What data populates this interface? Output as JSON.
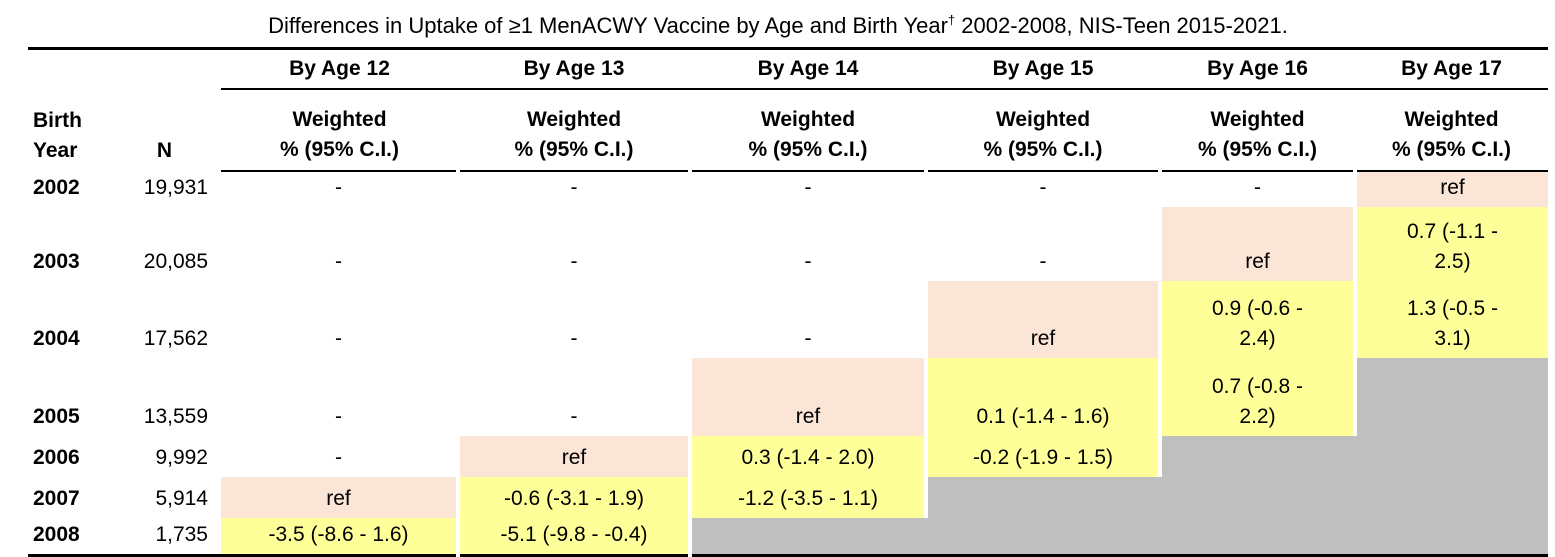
{
  "title": {
    "text": "Differences in Uptake of ≥1 MenACWY Vaccine by Age and Birth Year",
    "dagger": "†",
    "suffix": " 2002-2008, NIS-Teen 2015-2021."
  },
  "table": {
    "birth_year_label": "Birth\nYear",
    "n_label": "N",
    "age_headers": [
      "By Age 12",
      "By Age 13",
      "By Age 14",
      "By Age 15",
      "By Age 16",
      "By Age 17"
    ],
    "measure_subheader": "Weighted\n% (95% C.I.)"
  },
  "colors": {
    "ref_cell": "#FBE5D6",
    "estimate_cell": "#FFFF99",
    "unavailable_cell": "#BFBFBF",
    "rule": "#000000"
  },
  "rows": [
    {
      "year": "2002",
      "n": "19,931",
      "cells": [
        {
          "v": "-",
          "bg": "plain"
        },
        {
          "v": "-",
          "bg": "plain"
        },
        {
          "v": "-",
          "bg": "plain"
        },
        {
          "v": "-",
          "bg": "plain"
        },
        {
          "v": "-",
          "bg": "plain"
        },
        {
          "v": "ref",
          "bg": "ref"
        }
      ]
    },
    {
      "year": "2003",
      "n": "20,085",
      "cells": [
        {
          "v": "-",
          "bg": "plain"
        },
        {
          "v": "-",
          "bg": "plain"
        },
        {
          "v": "-",
          "bg": "plain"
        },
        {
          "v": "-",
          "bg": "plain"
        },
        {
          "v": "ref",
          "bg": "ref"
        },
        {
          "v": "0.7 (-1.1 -\n2.5)",
          "bg": "est"
        }
      ]
    },
    {
      "year": "2004",
      "n": "17,562",
      "cells": [
        {
          "v": "-",
          "bg": "plain"
        },
        {
          "v": "-",
          "bg": "plain"
        },
        {
          "v": "-",
          "bg": "plain"
        },
        {
          "v": "ref",
          "bg": "ref"
        },
        {
          "v": "0.9 (-0.6 -\n2.4)",
          "bg": "est"
        },
        {
          "v": "1.3 (-0.5 -\n3.1)",
          "bg": "est"
        }
      ]
    },
    {
      "year": "2005",
      "n": "13,559",
      "cells": [
        {
          "v": "-",
          "bg": "plain"
        },
        {
          "v": "-",
          "bg": "plain"
        },
        {
          "v": "ref",
          "bg": "ref"
        },
        {
          "v": "0.1 (-1.4 - 1.6)",
          "bg": "est"
        },
        {
          "v": "0.7 (-0.8 -\n2.2)",
          "bg": "est"
        },
        {
          "v": "",
          "bg": "na"
        }
      ]
    },
    {
      "year": "2006",
      "n": "9,992",
      "cells": [
        {
          "v": "-",
          "bg": "plain"
        },
        {
          "v": "ref",
          "bg": "ref"
        },
        {
          "v": "0.3 (-1.4 - 2.0)",
          "bg": "est"
        },
        {
          "v": "-0.2 (-1.9 - 1.5)",
          "bg": "est"
        },
        {
          "v": "",
          "bg": "na"
        },
        {
          "v": "",
          "bg": "na"
        }
      ]
    },
    {
      "year": "2007",
      "n": "5,914",
      "cells": [
        {
          "v": "ref",
          "bg": "ref"
        },
        {
          "v": "-0.6 (-3.1 - 1.9)",
          "bg": "est"
        },
        {
          "v": "-1.2 (-3.5 - 1.1)",
          "bg": "est"
        },
        {
          "v": "",
          "bg": "na"
        },
        {
          "v": "",
          "bg": "na"
        },
        {
          "v": "",
          "bg": "na"
        }
      ]
    },
    {
      "year": "2008",
      "n": "1,735",
      "cells": [
        {
          "v": "-3.5 (-8.6 - 1.6)",
          "bg": "est"
        },
        {
          "v": "-5.1 (-9.8 - -0.4)",
          "bg": "est"
        },
        {
          "v": "",
          "bg": "na"
        },
        {
          "v": "",
          "bg": "na"
        },
        {
          "v": "",
          "bg": "na"
        },
        {
          "v": "",
          "bg": "na"
        }
      ]
    }
  ]
}
